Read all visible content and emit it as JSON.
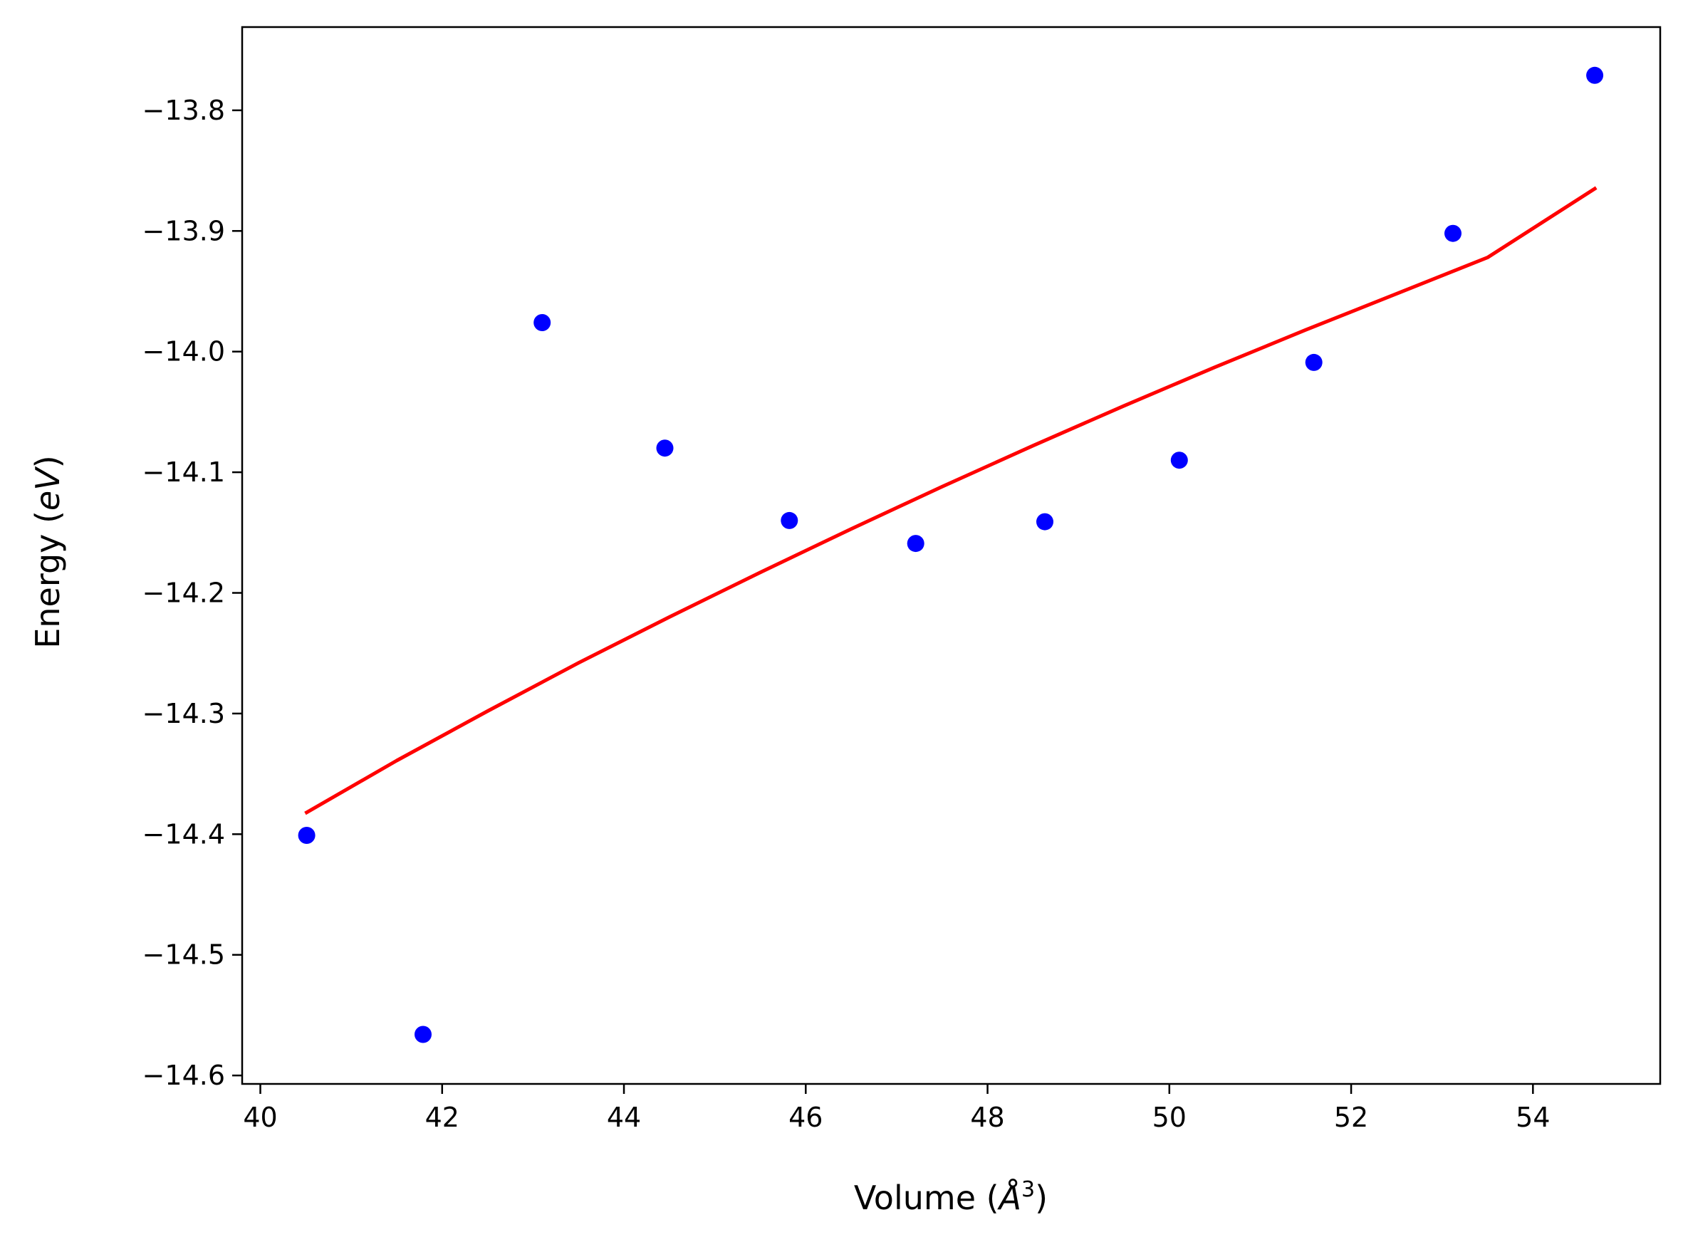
{
  "chart_data": {
    "type": "scatter",
    "title": "",
    "xlabel": "Volume (",
    "xlabel_symbol": "Å",
    "xlabel_sup": "3",
    "xlabel_close": ")",
    "ylabel": "Energy (",
    "ylabel_unit": "eV",
    "ylabel_close": ")",
    "xlim": [
      39.8,
      55.4
    ],
    "ylim": [
      -14.607,
      -13.731
    ],
    "xticks": [
      40,
      42,
      44,
      46,
      48,
      50,
      52,
      54
    ],
    "xtick_labels": [
      "40",
      "42",
      "44",
      "46",
      "48",
      "50",
      "52",
      "54"
    ],
    "yticks": [
      -14.6,
      -14.5,
      -14.4,
      -14.3,
      -14.2,
      -14.1,
      -14.0,
      -13.9,
      -13.8
    ],
    "ytick_labels": [
      "−14.6",
      "−14.5",
      "−14.4",
      "−14.3",
      "−14.2",
      "−14.1",
      "−14.0",
      "−13.9",
      "−13.8"
    ],
    "grid": false,
    "series": [
      {
        "kind": "points",
        "color": "#0000ff",
        "x": [
          40.51,
          41.79,
          43.1,
          44.45,
          45.82,
          47.21,
          48.63,
          50.11,
          51.59,
          53.12,
          54.68
        ],
        "y": [
          -14.401,
          -14.566,
          -13.976,
          -14.08,
          -14.14,
          -14.159,
          -14.141,
          -14.09,
          -14.009,
          -13.902,
          -13.771
        ]
      },
      {
        "kind": "line",
        "color": "#ff0000",
        "x": [
          40.51,
          41.5,
          42.5,
          43.5,
          44.5,
          45.5,
          46.5,
          47.5,
          48.5,
          49.5,
          50.5,
          51.5,
          52.5,
          53.5,
          54.68
        ],
        "y": [
          -14.382,
          -14.339,
          -14.298,
          -14.258,
          -14.22,
          -14.183,
          -14.147,
          -14.112,
          -14.078,
          -14.045,
          -14.013,
          -13.982,
          -13.952,
          -13.922,
          -13.865
        ]
      }
    ]
  }
}
